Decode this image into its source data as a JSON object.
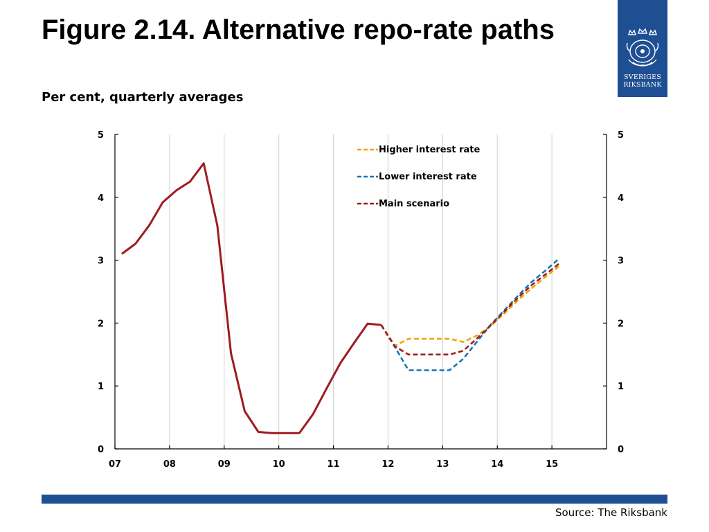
{
  "header": {
    "title": "Figure 2.14. Alternative repo-rate paths",
    "subtitle": "Per cent, quarterly averages"
  },
  "logo": {
    "text_line1": "SVERIGES",
    "text_line2": "RIKSBANK",
    "icon": "riksbank-crest-icon",
    "background": "#1f4f93"
  },
  "footer": {
    "source": "Source: The Riksbank",
    "bar_color": "#1f4f93"
  },
  "chart_data": {
    "type": "line",
    "title": "",
    "xlabel": "",
    "ylabel": "",
    "x_ticks": [
      "07",
      "08",
      "09",
      "10",
      "11",
      "12",
      "13",
      "14",
      "15"
    ],
    "xlim": [
      2007.0,
      2016.0
    ],
    "ylim": [
      0,
      5
    ],
    "y_ticks": [
      0,
      1,
      2,
      3,
      4,
      5
    ],
    "y_axis_right": true,
    "grid": "vertical",
    "legend_position": "top-center",
    "series": [
      {
        "name": "Main scenario (outcome)",
        "legend": false,
        "color": "#9e1b21",
        "style": "solid",
        "points": [
          [
            2007.125,
            3.1
          ],
          [
            2007.375,
            3.26
          ],
          [
            2007.625,
            3.55
          ],
          [
            2007.875,
            3.92
          ],
          [
            2008.125,
            4.11
          ],
          [
            2008.375,
            4.25
          ],
          [
            2008.625,
            4.54
          ],
          [
            2008.875,
            3.55
          ],
          [
            2009.125,
            1.52
          ],
          [
            2009.375,
            0.6
          ],
          [
            2009.625,
            0.27
          ],
          [
            2009.875,
            0.25
          ],
          [
            2010.125,
            0.25
          ],
          [
            2010.375,
            0.25
          ],
          [
            2010.625,
            0.55
          ],
          [
            2010.875,
            0.96
          ],
          [
            2011.125,
            1.36
          ],
          [
            2011.375,
            1.68
          ],
          [
            2011.625,
            1.99
          ],
          [
            2011.875,
            1.97
          ]
        ]
      },
      {
        "name": "Higher interest rate",
        "legend": true,
        "color": "#f0a500",
        "style": "dashed",
        "points": [
          [
            2011.875,
            1.97
          ],
          [
            2012.125,
            1.64
          ],
          [
            2012.375,
            1.75
          ],
          [
            2012.625,
            1.75
          ],
          [
            2012.875,
            1.75
          ],
          [
            2013.125,
            1.75
          ],
          [
            2013.375,
            1.7
          ],
          [
            2013.625,
            1.8
          ],
          [
            2013.875,
            1.95
          ],
          [
            2014.125,
            2.15
          ],
          [
            2014.375,
            2.36
          ],
          [
            2014.625,
            2.55
          ],
          [
            2014.875,
            2.73
          ],
          [
            2015.125,
            2.9
          ]
        ]
      },
      {
        "name": "Lower interest rate",
        "legend": true,
        "color": "#1a75b6",
        "style": "dashed",
        "points": [
          [
            2011.875,
            1.97
          ],
          [
            2012.125,
            1.62
          ],
          [
            2012.375,
            1.25
          ],
          [
            2012.625,
            1.25
          ],
          [
            2012.875,
            1.25
          ],
          [
            2013.125,
            1.25
          ],
          [
            2013.375,
            1.43
          ],
          [
            2013.625,
            1.7
          ],
          [
            2013.875,
            1.97
          ],
          [
            2014.125,
            2.2
          ],
          [
            2014.375,
            2.43
          ],
          [
            2014.625,
            2.65
          ],
          [
            2014.875,
            2.83
          ],
          [
            2015.125,
            3.02
          ]
        ]
      },
      {
        "name": "Main scenario",
        "legend": true,
        "color": "#9e1b21",
        "style": "dashed",
        "points": [
          [
            2011.875,
            1.97
          ],
          [
            2012.125,
            1.63
          ],
          [
            2012.375,
            1.5
          ],
          [
            2012.625,
            1.5
          ],
          [
            2012.875,
            1.5
          ],
          [
            2013.125,
            1.5
          ],
          [
            2013.375,
            1.56
          ],
          [
            2013.625,
            1.75
          ],
          [
            2013.875,
            1.96
          ],
          [
            2014.125,
            2.18
          ],
          [
            2014.375,
            2.4
          ],
          [
            2014.625,
            2.6
          ],
          [
            2014.875,
            2.77
          ],
          [
            2015.125,
            2.94
          ]
        ]
      }
    ]
  }
}
